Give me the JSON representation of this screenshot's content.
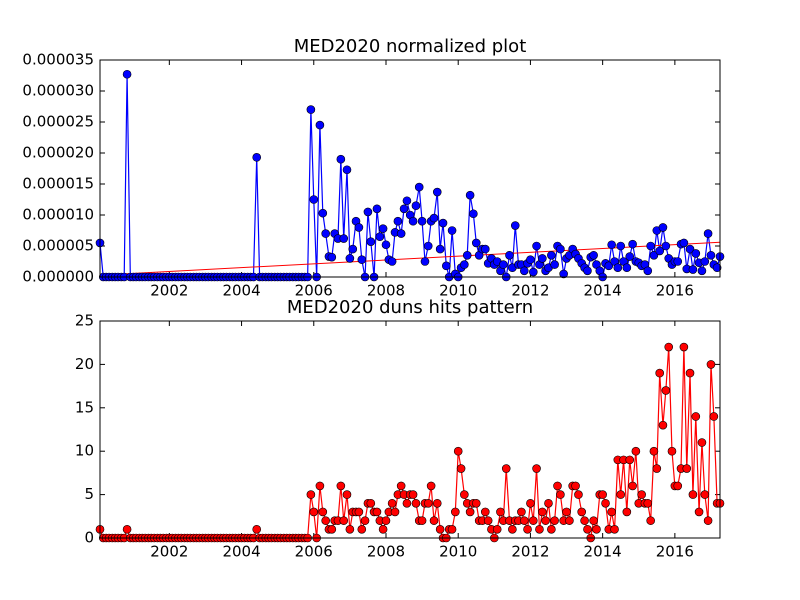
{
  "chart_data": [
    {
      "type": "line",
      "title": "MED2020 normalized plot",
      "x": [
        2000.08,
        2000.17,
        2000.25,
        2000.33,
        2000.42,
        2000.5,
        2000.58,
        2000.67,
        2000.75,
        2000.83,
        2000.92,
        2001,
        2001.08,
        2001.17,
        2001.25,
        2001.33,
        2001.42,
        2001.5,
        2001.58,
        2001.67,
        2001.75,
        2001.83,
        2001.92,
        2002,
        2002.08,
        2002.17,
        2002.25,
        2002.33,
        2002.42,
        2002.5,
        2002.58,
        2002.67,
        2002.75,
        2002.83,
        2002.92,
        2003,
        2003.08,
        2003.17,
        2003.25,
        2003.33,
        2003.42,
        2003.5,
        2003.58,
        2003.67,
        2003.75,
        2003.83,
        2003.92,
        2004,
        2004.08,
        2004.17,
        2004.25,
        2004.33,
        2004.42,
        2004.5,
        2004.58,
        2004.67,
        2004.75,
        2004.83,
        2004.92,
        2005,
        2005.08,
        2005.17,
        2005.25,
        2005.33,
        2005.42,
        2005.5,
        2005.58,
        2005.67,
        2005.75,
        2005.83,
        2005.92,
        2006,
        2006.08,
        2006.17,
        2006.25,
        2006.33,
        2006.42,
        2006.5,
        2006.58,
        2006.67,
        2006.75,
        2006.83,
        2006.92,
        2007,
        2007.08,
        2007.17,
        2007.25,
        2007.33,
        2007.42,
        2007.5,
        2007.58,
        2007.67,
        2007.75,
        2007.83,
        2007.92,
        2008,
        2008.08,
        2008.17,
        2008.25,
        2008.33,
        2008.42,
        2008.5,
        2008.58,
        2008.67,
        2008.75,
        2008.83,
        2008.92,
        2009,
        2009.08,
        2009.17,
        2009.25,
        2009.33,
        2009.42,
        2009.5,
        2009.58,
        2009.67,
        2009.75,
        2009.83,
        2009.92,
        2010,
        2010.08,
        2010.17,
        2010.25,
        2010.33,
        2010.42,
        2010.5,
        2010.58,
        2010.67,
        2010.75,
        2010.83,
        2010.92,
        2011,
        2011.08,
        2011.17,
        2011.25,
        2011.33,
        2011.42,
        2011.5,
        2011.58,
        2011.67,
        2011.75,
        2011.83,
        2011.92,
        2012,
        2012.08,
        2012.17,
        2012.25,
        2012.33,
        2012.42,
        2012.5,
        2012.58,
        2012.67,
        2012.75,
        2012.83,
        2012.92,
        2013,
        2013.08,
        2013.17,
        2013.25,
        2013.33,
        2013.42,
        2013.5,
        2013.58,
        2013.67,
        2013.75,
        2013.83,
        2013.92,
        2014,
        2014.08,
        2014.17,
        2014.25,
        2014.33,
        2014.42,
        2014.5,
        2014.58,
        2014.67,
        2014.75,
        2014.83,
        2014.92,
        2015,
        2015.08,
        2015.17,
        2015.25,
        2015.33,
        2015.42,
        2015.5,
        2015.58,
        2015.67,
        2015.75,
        2015.83,
        2015.92,
        2016,
        2016.08,
        2016.17,
        2016.25,
        2016.33,
        2016.42,
        2016.5,
        2016.58,
        2016.67,
        2016.75,
        2016.83,
        2016.92,
        2017,
        2017.08,
        2017.17,
        2017.25
      ],
      "values": [
        5.5e-06,
        0,
        0,
        0,
        0,
        0,
        0,
        0,
        0,
        3.27e-05,
        0,
        0,
        0,
        0,
        0,
        0,
        0,
        0,
        0,
        0,
        0,
        0,
        0,
        0,
        0,
        0,
        0,
        0,
        0,
        0,
        0,
        0,
        0,
        0,
        0,
        0,
        0,
        0,
        0,
        0,
        0,
        0,
        0,
        0,
        0,
        0,
        0,
        0,
        0,
        0,
        0,
        0,
        1.93e-05,
        0,
        0,
        0,
        0,
        0,
        0,
        0,
        0,
        0,
        0,
        0,
        0,
        0,
        0,
        0,
        0,
        0,
        2.7e-05,
        1.25e-05,
        0,
        2.45e-05,
        1.03e-05,
        7e-06,
        3.3e-06,
        3.2e-06,
        7e-06,
        6.2e-06,
        1.9e-05,
        6.2e-06,
        1.73e-05,
        3e-06,
        4.5e-06,
        9e-06,
        8e-06,
        2.8e-06,
        0,
        1.05e-05,
        5.7e-06,
        0,
        1.1e-05,
        6.5e-06,
        7.8e-06,
        5.2e-06,
        2.8e-06,
        2.5e-06,
        7.2e-06,
        9e-06,
        7e-06,
        1.1e-05,
        1.23e-05,
        1e-05,
        9e-06,
        1.15e-05,
        1.45e-05,
        9e-06,
        2.5e-06,
        5e-06,
        9e-06,
        9.5e-06,
        1.37e-05,
        4.5e-06,
        8.7e-06,
        1.8e-06,
        0,
        7.5e-06,
        5e-07,
        0,
        1.5e-06,
        2e-06,
        3.5e-06,
        1.32e-05,
        1.02e-05,
        5.5e-06,
        3.5e-06,
        4.5e-06,
        4.5e-06,
        2.2e-06,
        3e-06,
        2e-06,
        2.5e-06,
        1e-06,
        2e-06,
        0,
        3.5e-06,
        1.5e-06,
        8.3e-06,
        2e-06,
        2e-06,
        1e-06,
        2.2e-06,
        2.8e-06,
        8e-07,
        5e-06,
        2e-06,
        3e-06,
        1e-06,
        1.5e-06,
        3.5e-06,
        2e-06,
        5e-06,
        4.5e-06,
        5e-07,
        3e-06,
        3.5e-06,
        4.5e-06,
        3.7e-06,
        3e-06,
        2.2e-06,
        1.5e-06,
        1e-06,
        3.2e-06,
        3.5e-06,
        2e-06,
        1e-06,
        0,
        2.2e-06,
        1.8e-06,
        5.2e-06,
        2.5e-06,
        1.5e-06,
        5e-06,
        2.5e-06,
        1.5e-06,
        3.3e-06,
        5.3e-06,
        2.5e-06,
        2.3e-06,
        1.8e-06,
        2e-06,
        1e-06,
        5e-06,
        3.5e-06,
        7.5e-06,
        4.2e-06,
        8e-06,
        5e-06,
        3e-06,
        2e-06,
        2.5e-06,
        2.5e-06,
        5.3e-06,
        5.5e-06,
        1.3e-06,
        4.5e-06,
        1.2e-06,
        3.8e-06,
        2.3e-06,
        1e-06,
        2.5e-06,
        7e-06,
        3.5e-06,
        2e-06,
        1.5e-06,
        3.3e-06
      ],
      "color": "#0000ff",
      "trend_line": {
        "x": [
          2000.08,
          2017.25
        ],
        "values": [
          3e-07,
          5.6e-06
        ],
        "color": "#ff0000"
      },
      "xlim": [
        2000.08,
        2017.25
      ],
      "xticks": [
        2002,
        2004,
        2006,
        2008,
        2010,
        2012,
        2014,
        2016
      ],
      "ylim": [
        0,
        3.5e-05
      ],
      "yticks": [
        {
          "value": 0,
          "label": "0.000000"
        },
        {
          "value": 5e-06,
          "label": "0.000005"
        },
        {
          "value": 1e-05,
          "label": "0.000010"
        },
        {
          "value": 1.5e-05,
          "label": "0.000015"
        },
        {
          "value": 2e-05,
          "label": "0.000020"
        },
        {
          "value": 2.5e-05,
          "label": "0.000025"
        },
        {
          "value": 3e-05,
          "label": "0.000030"
        },
        {
          "value": 3.5e-05,
          "label": "0.000035"
        }
      ]
    },
    {
      "type": "line",
      "title": "MED2020 duns hits pattern",
      "x": [
        2000.08,
        2000.17,
        2000.25,
        2000.33,
        2000.42,
        2000.5,
        2000.58,
        2000.67,
        2000.75,
        2000.83,
        2000.92,
        2001,
        2001.08,
        2001.17,
        2001.25,
        2001.33,
        2001.42,
        2001.5,
        2001.58,
        2001.67,
        2001.75,
        2001.83,
        2001.92,
        2002,
        2002.08,
        2002.17,
        2002.25,
        2002.33,
        2002.42,
        2002.5,
        2002.58,
        2002.67,
        2002.75,
        2002.83,
        2002.92,
        2003,
        2003.08,
        2003.17,
        2003.25,
        2003.33,
        2003.42,
        2003.5,
        2003.58,
        2003.67,
        2003.75,
        2003.83,
        2003.92,
        2004,
        2004.08,
        2004.17,
        2004.25,
        2004.33,
        2004.42,
        2004.5,
        2004.58,
        2004.67,
        2004.75,
        2004.83,
        2004.92,
        2005,
        2005.08,
        2005.17,
        2005.25,
        2005.33,
        2005.42,
        2005.5,
        2005.58,
        2005.67,
        2005.75,
        2005.83,
        2005.92,
        2006,
        2006.08,
        2006.17,
        2006.25,
        2006.33,
        2006.42,
        2006.5,
        2006.58,
        2006.67,
        2006.75,
        2006.83,
        2006.92,
        2007,
        2007.08,
        2007.17,
        2007.25,
        2007.33,
        2007.42,
        2007.5,
        2007.58,
        2007.67,
        2007.75,
        2007.83,
        2007.92,
        2008,
        2008.08,
        2008.17,
        2008.25,
        2008.33,
        2008.42,
        2008.5,
        2008.58,
        2008.67,
        2008.75,
        2008.83,
        2008.92,
        2009,
        2009.08,
        2009.17,
        2009.25,
        2009.33,
        2009.42,
        2009.5,
        2009.58,
        2009.67,
        2009.75,
        2009.83,
        2009.92,
        2010,
        2010.08,
        2010.17,
        2010.25,
        2010.33,
        2010.42,
        2010.5,
        2010.58,
        2010.67,
        2010.75,
        2010.83,
        2010.92,
        2011,
        2011.08,
        2011.17,
        2011.25,
        2011.33,
        2011.42,
        2011.5,
        2011.58,
        2011.67,
        2011.75,
        2011.83,
        2011.92,
        2012,
        2012.08,
        2012.17,
        2012.25,
        2012.33,
        2012.42,
        2012.5,
        2012.58,
        2012.67,
        2012.75,
        2012.83,
        2012.92,
        2013,
        2013.08,
        2013.17,
        2013.25,
        2013.33,
        2013.42,
        2013.5,
        2013.58,
        2013.67,
        2013.75,
        2013.83,
        2013.92,
        2014,
        2014.08,
        2014.17,
        2014.25,
        2014.33,
        2014.42,
        2014.5,
        2014.58,
        2014.67,
        2014.75,
        2014.83,
        2014.92,
        2015,
        2015.08,
        2015.17,
        2015.25,
        2015.33,
        2015.42,
        2015.5,
        2015.58,
        2015.67,
        2015.75,
        2015.83,
        2015.92,
        2016,
        2016.08,
        2016.17,
        2016.25,
        2016.33,
        2016.42,
        2016.5,
        2016.58,
        2016.67,
        2016.75,
        2016.83,
        2016.92,
        2017,
        2017.08,
        2017.17,
        2017.25
      ],
      "values": [
        1,
        0,
        0,
        0,
        0,
        0,
        0,
        0,
        0,
        1,
        0,
        0,
        0,
        0,
        0,
        0,
        0,
        0,
        0,
        0,
        0,
        0,
        0,
        0,
        0,
        0,
        0,
        0,
        0,
        0,
        0,
        0,
        0,
        0,
        0,
        0,
        0,
        0,
        0,
        0,
        0,
        0,
        0,
        0,
        0,
        0,
        0,
        0,
        0,
        0,
        0,
        0,
        1,
        0,
        0,
        0,
        0,
        0,
        0,
        0,
        0,
        0,
        0,
        0,
        0,
        0,
        0,
        0,
        0,
        0,
        5,
        3,
        0,
        6,
        3,
        2,
        1,
        1,
        2,
        2,
        6,
        2,
        5,
        1,
        3,
        3,
        3,
        1,
        2,
        4,
        4,
        3,
        3,
        2,
        1,
        2,
        3,
        4,
        3,
        5,
        6,
        5,
        4,
        5,
        5,
        4,
        2,
        2,
        4,
        4,
        6,
        2,
        4,
        1,
        0,
        0,
        1,
        1,
        3,
        10,
        8,
        5,
        4,
        3,
        4,
        4,
        2,
        2,
        3,
        2,
        1,
        0,
        1,
        3,
        2,
        8,
        2,
        1,
        2,
        2,
        3,
        2,
        1,
        4,
        2,
        8,
        1,
        3,
        2,
        4,
        1,
        2,
        6,
        5,
        2,
        3,
        2,
        6,
        6,
        5,
        3,
        2,
        1,
        0,
        2,
        1,
        5,
        5,
        4,
        1,
        3,
        1,
        9,
        5,
        9,
        3,
        9,
        6,
        10,
        4,
        5,
        4,
        4,
        2,
        10,
        8,
        19,
        13,
        17,
        22,
        10,
        6,
        6,
        8,
        22,
        8,
        19,
        5,
        14,
        3,
        11,
        5,
        2,
        20,
        14,
        4,
        4
      ],
      "color": "#ff0000",
      "xlim": [
        2000.08,
        2017.25
      ],
      "xticks": [
        2002,
        2004,
        2006,
        2008,
        2010,
        2012,
        2014,
        2016
      ],
      "ylim": [
        0,
        25
      ],
      "yticks": [
        0,
        5,
        10,
        15,
        20,
        25
      ]
    }
  ]
}
